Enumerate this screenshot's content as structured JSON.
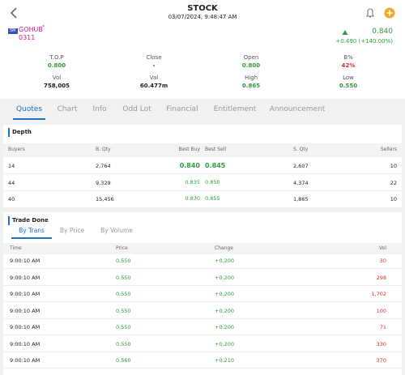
{
  "header": {
    "title": "STOCK",
    "datetime": "03/07/2024, 9:48:47 AM"
  },
  "stock": {
    "board": "SM",
    "name": "GOHUB",
    "flag": "*",
    "code": "0311",
    "price": "0.840",
    "change": "+0.490 (+140.00%)"
  },
  "stats": [
    {
      "label": "T.O.P",
      "value": "0.800"
    },
    {
      "label": "Close",
      "value": "-"
    },
    {
      "label": "Open",
      "value": "0.800"
    },
    {
      "label": "B%",
      "value": "42%"
    },
    {
      "label": "Vol",
      "value": "758,005"
    },
    {
      "label": "Val",
      "value": "60.477m"
    },
    {
      "label": "High",
      "value": "0.865"
    },
    {
      "label": "Low",
      "value": "0.550"
    }
  ],
  "tabs": [
    "Quotes",
    "Chart",
    "Info",
    "Odd Lot",
    "Financial",
    "Entitlement",
    "Announcement"
  ],
  "depth": {
    "title": "Depth",
    "columns": [
      "Buyers",
      "B. Qty",
      "Best Buy",
      "Best Sell",
      "S. Qty",
      "Sellers"
    ],
    "rows": [
      [
        "14",
        "2,764",
        "0.840",
        "0.845",
        "2,607",
        "10"
      ],
      [
        "44",
        "9,329",
        "0.835",
        "0.850",
        "4,374",
        "22"
      ],
      [
        "40",
        "15,456",
        "0.830",
        "0.855",
        "1,865",
        "10"
      ]
    ]
  },
  "trade_done": {
    "title": "Trade Done",
    "tabs": [
      "By Trans",
      "By Price",
      "By Volume"
    ],
    "columns": [
      "Time",
      "Price",
      "Change",
      "Vol"
    ],
    "rows": [
      [
        "9:00:10 AM",
        "0.550",
        "+0.200",
        "30"
      ],
      [
        "9:00:10 AM",
        "0.550",
        "+0.200",
        "298"
      ],
      [
        "9:00:10 AM",
        "0.550",
        "+0.200",
        "1,702"
      ],
      [
        "9:00:10 AM",
        "0.550",
        "+0.200",
        "100"
      ],
      [
        "9:00:10 AM",
        "0.550",
        "+0.200",
        "71"
      ],
      [
        "9:00:10 AM",
        "0.550",
        "+0.200",
        "330"
      ],
      [
        "9:00:10 AM",
        "0.560",
        "+0.210",
        "370"
      ]
    ]
  }
}
